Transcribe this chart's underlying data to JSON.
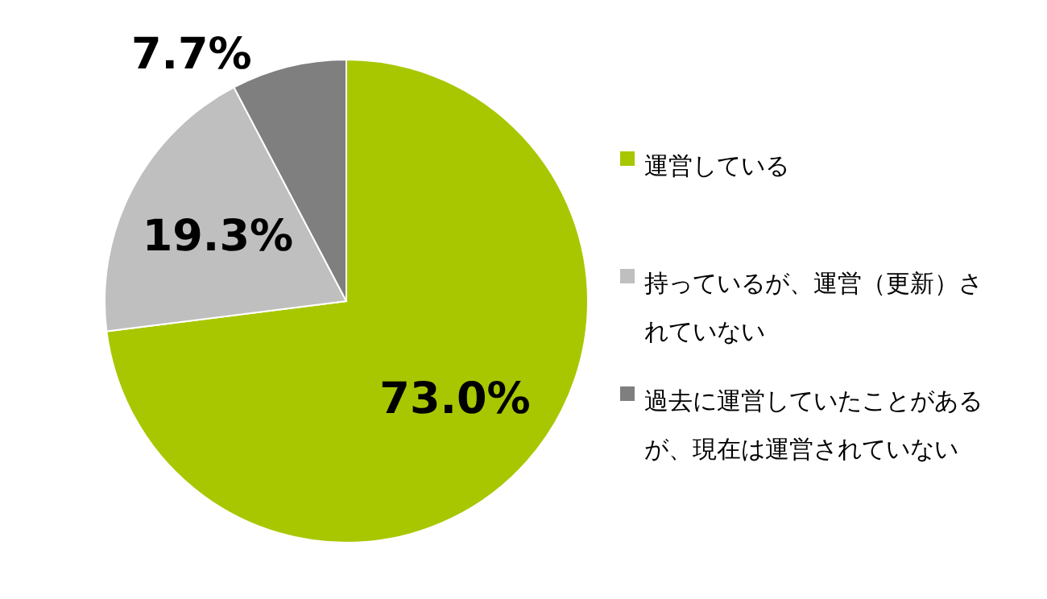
{
  "chart_data": {
    "type": "pie",
    "categories": [
      "運営している",
      "持っているが、運営（更新）されていない",
      "過去に運営していたことがあるが、現在は運営されていない"
    ],
    "values": [
      73.0,
      19.3,
      7.7
    ],
    "colors": [
      "#a9c700",
      "#bfbfbf",
      "#7f7f7f"
    ],
    "value_labels": [
      "73.0%",
      "19.3%",
      "7.7%"
    ],
    "legend": "right"
  }
}
